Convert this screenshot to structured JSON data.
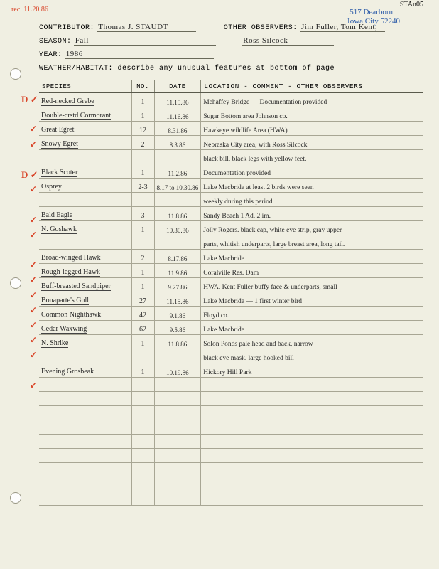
{
  "page_bg": "#f0efe2",
  "top_marks": {
    "rec_date": "rec. 11.20.86",
    "rec_date_color": "#d9462a",
    "name_corner": "STAu05",
    "address1": "517 Dearborn",
    "address2": "Iowa City  52240",
    "address_color": "#2a5aa8"
  },
  "header": {
    "contributor_label": "CONTRIBUTOR:",
    "contributor": "Thomas J. STAUDT",
    "other_obs_label": "OTHER OBSERVERS:",
    "other_obs": "Jim Fuller, Tom Kent,",
    "season_label": "SEASON:",
    "season": "Fall",
    "other_obs2": "Ross Silcock",
    "year_label": "YEAR:",
    "year": "1986",
    "weather_label": "WEATHER/HABITAT: describe any unusual features at bottom of page"
  },
  "columns": {
    "species": "SPECIES",
    "no": "NO.",
    "date": "DATE",
    "loc": "LOCATION - COMMENT - OTHER OBSERVERS"
  },
  "rows": [
    {
      "mark": "D✓",
      "sp": "Red-necked Grebe",
      "no": "1",
      "dt": "11.15.86",
      "loc": "Mehaffey Bridge  —  Documentation provided"
    },
    {
      "mark": "",
      "sp": "Double-crstd Cormorant",
      "no": "1",
      "dt": "11.16.86",
      "loc": "Sugar Bottom area  Johnson co."
    },
    {
      "mark": "✓",
      "sp": "Great Egret",
      "no": "12",
      "dt": "8.31.86",
      "loc": "Hawkeye wildlife Area  (HWA)"
    },
    {
      "mark": "✓",
      "sp": "Snowy Egret",
      "no": "2",
      "dt": "8.3.86",
      "loc": "Nebraska City area, with Ross Silcock"
    },
    {
      "mark": "",
      "sp": "",
      "no": "",
      "dt": "",
      "loc": "black bill, black legs with yellow feet."
    },
    {
      "mark": "D✓",
      "sp": "Black Scoter",
      "no": "1",
      "dt": "11.2.86",
      "loc": "Documentation provided"
    },
    {
      "mark": "✓",
      "sp": "Osprey",
      "no": "2-3",
      "dt": "8.17 to 10.30.86",
      "loc": "Lake Macbride at least 2 birds were seen"
    },
    {
      "mark": "",
      "sp": "",
      "no": "",
      "dt": "",
      "loc": "weekly during this period"
    },
    {
      "mark": "✓",
      "sp": "Bald Eagle",
      "no": "3",
      "dt": "11.8.86",
      "loc": "Sandy Beach   1 Ad.  2 im."
    },
    {
      "mark": "✓",
      "sp": "N. Goshawk",
      "no": "1",
      "dt": "10.30.86",
      "loc": "Jolly Rogers. black cap, white eye strip, gray upper"
    },
    {
      "mark": "",
      "sp": "",
      "no": "",
      "dt": "",
      "loc": "parts, whitish underparts, large breast area, long tail."
    },
    {
      "mark": "✓",
      "sp": "Broad-winged Hawk",
      "no": "2",
      "dt": "8.17.86",
      "loc": "Lake Macbride"
    },
    {
      "mark": "✓",
      "sp": "Rough-legged Hawk",
      "no": "1",
      "dt": "11.9.86",
      "loc": "Coralville Res. Dam"
    },
    {
      "mark": "✓",
      "sp": "Buff-breasted Sandpiper",
      "no": "1",
      "dt": "9.27.86",
      "loc": "HWA,  Kent  Fuller  buffy face & underparts, small"
    },
    {
      "mark": "✓",
      "sp": "Bonaparte's Gull",
      "no": "27",
      "dt": "11.15.86",
      "loc": "Lake Macbride   — 1 first winter bird"
    },
    {
      "mark": "✓",
      "sp": "Common Nighthawk",
      "no": "42",
      "dt": "9.1.86",
      "loc": "Floyd co."
    },
    {
      "mark": "✓",
      "sp": "Cedar Waxwing",
      "no": "62",
      "dt": "9.5.86",
      "loc": "Lake Macbride"
    },
    {
      "mark": "✓",
      "sp": "N. Shrike",
      "no": "1",
      "dt": "11.8.86",
      "loc": "Solon Ponds  pale head and back, narrow"
    },
    {
      "mark": "",
      "sp": "",
      "no": "",
      "dt": "",
      "loc": "black eye mask.  large hooked bill"
    },
    {
      "mark": "✓",
      "sp": "Evening Grosbeak",
      "no": "1",
      "dt": "10.19.86",
      "loc": "Hickory Hill Park"
    },
    {
      "mark": "",
      "sp": "",
      "no": "",
      "dt": "",
      "loc": ""
    },
    {
      "mark": "",
      "sp": "",
      "no": "",
      "dt": "",
      "loc": ""
    },
    {
      "mark": "",
      "sp": "",
      "no": "",
      "dt": "",
      "loc": ""
    },
    {
      "mark": "",
      "sp": "",
      "no": "",
      "dt": "",
      "loc": ""
    },
    {
      "mark": "",
      "sp": "",
      "no": "",
      "dt": "",
      "loc": ""
    },
    {
      "mark": "",
      "sp": "",
      "no": "",
      "dt": "",
      "loc": ""
    },
    {
      "mark": "",
      "sp": "",
      "no": "",
      "dt": "",
      "loc": ""
    },
    {
      "mark": "",
      "sp": "",
      "no": "",
      "dt": "",
      "loc": ""
    },
    {
      "mark": "",
      "sp": "",
      "no": "",
      "dt": "",
      "loc": ""
    }
  ]
}
